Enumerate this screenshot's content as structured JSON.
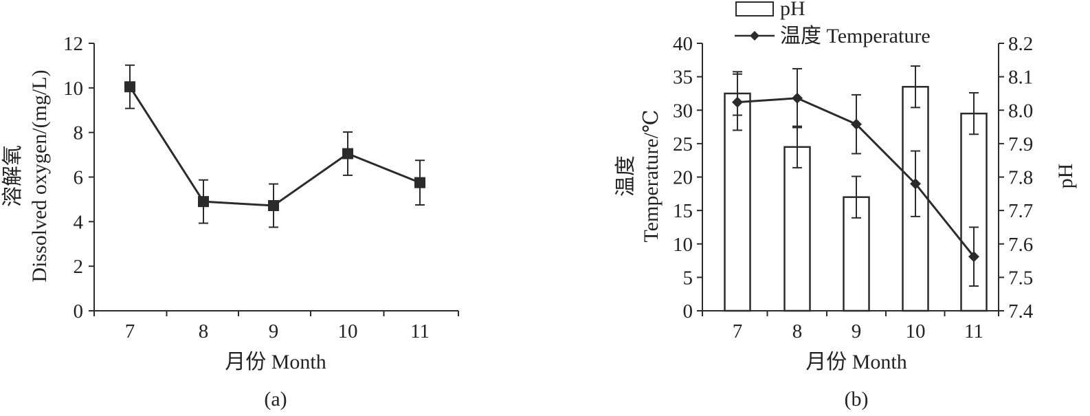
{
  "chart_data": [
    {
      "panel_label": "(a)",
      "type": "line",
      "xlabel": "月份 Month",
      "ylabel_cn": "溶解氧",
      "ylabel_en": "Dissolved oxygen/(mg/L)",
      "categories": [
        "7",
        "8",
        "9",
        "10",
        "11"
      ],
      "ylim": [
        0,
        12
      ],
      "yticks": [
        "0",
        "2",
        "4",
        "6",
        "8",
        "10",
        "12"
      ],
      "series": [
        {
          "values": [
            10.05,
            4.9,
            4.72,
            7.05,
            5.75
          ],
          "errors": [
            0.97,
            0.97,
            0.97,
            0.97,
            1.0
          ],
          "marker": "square"
        }
      ],
      "grid": false,
      "color": "#2b2b2b"
    },
    {
      "panel_label": "(b)",
      "type": "bar",
      "xlabel": "月份 Month",
      "ylabel_left_cn": "温度",
      "ylabel_left_en": "Temperature/℃",
      "ylabel_right": "pH",
      "categories": [
        "7",
        "8",
        "9",
        "10",
        "11"
      ],
      "ylim_left": [
        0,
        40
      ],
      "yticks_left": [
        "0",
        "5",
        "10",
        "15",
        "20",
        "25",
        "30",
        "35",
        "40"
      ],
      "ylim_right": [
        7.4,
        8.2
      ],
      "yticks_right": [
        "7.4",
        "7.5",
        "7.6",
        "7.7",
        "7.8",
        "7.9",
        "8.0",
        "8.1",
        "8.2"
      ],
      "legend_position": "top",
      "series": [
        {
          "name": "pH",
          "type": "bar",
          "axis": "right",
          "values": [
            8.05,
            7.89,
            7.74,
            8.07,
            7.99
          ],
          "errors": [
            0.065,
            0.062,
            0.062,
            0.062,
            0.062
          ]
        },
        {
          "name": "温度 Temperature",
          "type": "line",
          "axis": "left",
          "marker": "diamond",
          "values": [
            31.2,
            31.8,
            27.9,
            19.0,
            8.1
          ],
          "errors": [
            4.2,
            4.4,
            4.4,
            4.9,
            4.4
          ]
        }
      ],
      "grid": false,
      "color": "#2b2b2b"
    }
  ]
}
